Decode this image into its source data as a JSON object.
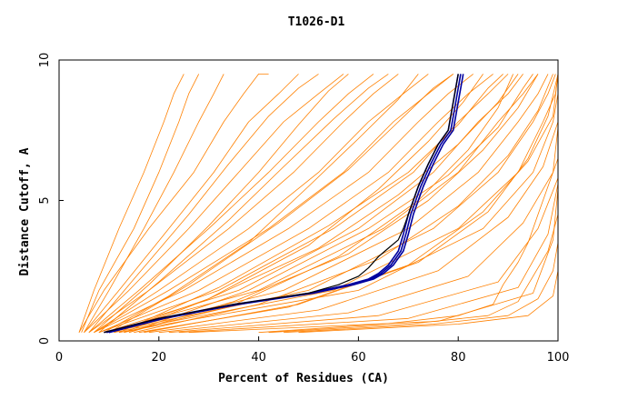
{
  "chart_data": {
    "type": "line",
    "title": "T1026-D1",
    "xlabel": "Percent of Residues (CA)",
    "ylabel": "Distance Cutoff, A",
    "xlim": [
      0,
      100
    ],
    "ylim": [
      0,
      10
    ],
    "xticks": [
      "0",
      "20",
      "40",
      "60",
      "80",
      "100"
    ],
    "yticks": [
      "0",
      "5",
      "10"
    ],
    "grid": false,
    "legend": "none",
    "colors": {
      "background_models": "#ff8000",
      "highlighted_models": "#0000a0",
      "reference_model": "#000000"
    },
    "series": [
      {
        "role": "background-models",
        "values": [
          {
            "x": [
              4,
              9,
              18,
              27,
              33,
              37,
              40,
              42
            ],
            "y": [
              0.3,
              1.8,
              4,
              6,
              7.8,
              8.8,
              9.5,
              9.5
            ]
          },
          {
            "x": [
              5,
              12,
              22,
              31,
              38,
              44,
              48
            ],
            "y": [
              0.3,
              1.8,
              4,
              6,
              7.8,
              8.8,
              9.5
            ]
          },
          {
            "x": [
              5,
              14,
              26,
              36,
              45,
              52,
              57
            ],
            "y": [
              0.3,
              1.8,
              4,
              6,
              7.8,
              8.8,
              9.5
            ]
          },
          {
            "x": [
              6,
              16,
              30,
              42,
              52,
              58,
              63
            ],
            "y": [
              0.3,
              1.8,
              4,
              6,
              7.8,
              8.8,
              9.5
            ]
          },
          {
            "x": [
              6,
              18,
              34,
              47,
              57,
              63,
              68
            ],
            "y": [
              0.3,
              1.8,
              4,
              6,
              7.8,
              8.8,
              9.5
            ]
          },
          {
            "x": [
              7,
              20,
              38,
              52,
              62,
              69,
              74
            ],
            "y": [
              0.3,
              1.8,
              4,
              6,
              7.8,
              8.8,
              9.5
            ]
          },
          {
            "x": [
              7,
              22,
              42,
              57,
              67,
              74,
              79
            ],
            "y": [
              0.3,
              1.8,
              4,
              6,
              7.8,
              8.8,
              9.5
            ]
          },
          {
            "x": [
              7,
              25,
              46,
              62,
              72,
              78,
              83
            ],
            "y": [
              0.3,
              1.8,
              4,
              6,
              7.8,
              8.8,
              9.5
            ]
          },
          {
            "x": [
              8,
              28,
              50,
              66,
              76,
              82,
              87
            ],
            "y": [
              0.3,
              1.8,
              4,
              6,
              7.8,
              8.8,
              9.5
            ]
          },
          {
            "x": [
              8,
              32,
              55,
              71,
              80,
              86,
              90
            ],
            "y": [
              0.3,
              1.8,
              4,
              6,
              7.8,
              8.8,
              9.5
            ]
          },
          {
            "x": [
              9,
              36,
              60,
              75,
              84,
              90,
              93
            ],
            "y": [
              0.3,
              1.8,
              4,
              6,
              7.8,
              8.8,
              9.5
            ]
          },
          {
            "x": [
              9,
              40,
              65,
              80,
              88,
              93,
              96
            ],
            "y": [
              0.3,
              1.8,
              4,
              6,
              7.8,
              8.8,
              9.5
            ]
          },
          {
            "x": [
              10,
              45,
              70,
              84,
              92,
              96,
              98
            ],
            "y": [
              0.3,
              1.8,
              4,
              6,
              7.8,
              8.8,
              9.5
            ]
          },
          {
            "x": [
              10,
              50,
              75,
              88,
              95,
              98,
              99.5
            ],
            "y": [
              0.3,
              1.8,
              4,
              6,
              7.8,
              8.8,
              9.5
            ]
          },
          {
            "x": [
              11,
              55,
              80,
              92,
              97,
              99.5,
              100
            ],
            "y": [
              0.3,
              1.8,
              4,
              6,
              7.8,
              8.8,
              9.5
            ]
          },
          {
            "x": [
              12,
              60,
              85,
              95,
              99,
              100,
              100
            ],
            "y": [
              0.3,
              1.8,
              4,
              6,
              7.8,
              8.8,
              9.5
            ]
          },
          {
            "x": [
              4,
              7,
              12,
              17,
              21,
              23,
              25
            ],
            "y": [
              0.3,
              1.8,
              4,
              6,
              7.8,
              8.8,
              9.5
            ]
          },
          {
            "x": [
              4.5,
              8,
              15,
              20,
              24,
              26,
              28
            ],
            "y": [
              0.3,
              1.8,
              4,
              6,
              7.8,
              8.8,
              9.5
            ]
          },
          {
            "x": [
              5,
              10,
              17,
              23,
              28,
              31,
              33
            ],
            "y": [
              0.3,
              1.8,
              4,
              6,
              7.8,
              8.8,
              9.5
            ]
          },
          {
            "x": [
              13,
              30,
              52,
              68,
              80,
              88,
              92
            ],
            "y": [
              0.3,
              1.5,
              3.3,
              5.2,
              7,
              8.5,
              9.5
            ]
          },
          {
            "x": [
              14,
              35,
              58,
              74,
              85,
              92,
              96
            ],
            "y": [
              0.3,
              1.4,
              3.1,
              5,
              6.8,
              8.3,
              9.5
            ]
          },
          {
            "x": [
              15,
              40,
              64,
              80,
              90,
              96,
              99
            ],
            "y": [
              0.3,
              1.3,
              2.9,
              4.8,
              6.6,
              8.2,
              9.5
            ]
          },
          {
            "x": [
              16,
              46,
              70,
              85,
              94,
              99,
              100
            ],
            "y": [
              0.3,
              1.2,
              2.7,
              4.6,
              6.4,
              8,
              9.5
            ]
          },
          {
            "x": [
              18,
              52,
              76,
              90,
              97,
              100,
              100
            ],
            "y": [
              0.3,
              1.1,
              2.5,
              4.4,
              6.2,
              7.8,
              9.5
            ]
          },
          {
            "x": [
              20,
              58,
              82,
              93,
              99,
              100,
              100
            ],
            "y": [
              0.3,
              1,
              2.3,
              4.2,
              6,
              7.6,
              9.5
            ]
          },
          {
            "x": [
              22,
              64,
              88,
              96,
              100,
              100,
              100
            ],
            "y": [
              0.3,
              0.9,
              2.1,
              4,
              5.8,
              7.4,
              9.5
            ]
          },
          {
            "x": [
              24,
              70,
              92,
              98,
              100,
              100,
              100
            ],
            "y": [
              0.3,
              0.8,
              1.9,
              3.8,
              5.6,
              7.2,
              9.5
            ]
          },
          {
            "x": [
              26,
              76,
              95,
              99,
              100,
              100,
              100
            ],
            "y": [
              0.3,
              0.7,
              1.7,
              3.6,
              5.4,
              7,
              9.5
            ]
          },
          {
            "x": [
              6,
              15,
              26,
              34,
              42,
              48,
              52
            ],
            "y": [
              0.3,
              2.2,
              4.5,
              6.3,
              8,
              9,
              9.5
            ]
          },
          {
            "x": [
              8,
              20,
              34,
              45,
              55,
              62,
              66
            ],
            "y": [
              0.3,
              2.1,
              4.3,
              6.2,
              7.9,
              9,
              9.5
            ]
          },
          {
            "x": [
              10,
              26,
              44,
              58,
              68,
              75,
              79
            ],
            "y": [
              0.3,
              2,
              4.2,
              6.1,
              7.8,
              9,
              9.5
            ]
          },
          {
            "x": [
              12,
              32,
              54,
              70,
              80,
              86,
              89
            ],
            "y": [
              0.3,
              1.9,
              4.1,
              6,
              7.7,
              9,
              9.5
            ]
          },
          {
            "x": [
              14,
              38,
              62,
              78,
              88,
              93,
              95
            ],
            "y": [
              0.3,
              1.8,
              4,
              5.9,
              7.6,
              9,
              9.5
            ]
          },
          {
            "x": [
              40,
              65,
              80,
              87,
              89,
              92,
              94,
              96,
              98,
              100
            ],
            "y": [
              0.3,
              0.6,
              0.9,
              1.3,
              2,
              2.8,
              3.5,
              4.5,
              5.5,
              6.5
            ]
          },
          {
            "x": [
              42,
              70,
              86,
              92,
              95,
              98,
              100
            ],
            "y": [
              0.3,
              0.6,
              0.9,
              1.4,
              2.3,
              3.2,
              4.5
            ]
          },
          {
            "x": [
              45,
              75,
              90,
              96,
              99,
              100
            ],
            "y": [
              0.3,
              0.6,
              0.9,
              1.5,
              2.5,
              3.5
            ]
          },
          {
            "x": [
              48,
              80,
              94,
              99,
              100
            ],
            "y": [
              0.3,
              0.6,
              0.9,
              1.6,
              2.5
            ]
          },
          {
            "x": [
              9,
              22,
              38,
              50,
              60,
              68,
              72
            ],
            "y": [
              0.3,
              1.6,
              3.5,
              5.5,
              7.2,
              8.6,
              9.5
            ]
          },
          {
            "x": [
              11,
              30,
              50,
              64,
              74,
              81,
              85
            ],
            "y": [
              0.3,
              1.5,
              3.4,
              5.4,
              7.1,
              8.5,
              9.5
            ]
          },
          {
            "x": [
              13,
              34,
              56,
              72,
              82,
              88,
              91
            ],
            "y": [
              0.3,
              1.2,
              3,
              5,
              6.8,
              8.3,
              9.5
            ]
          },
          {
            "x": [
              7,
              18,
              30,
              40,
              48,
              54,
              58
            ],
            "y": [
              0.3,
              2,
              4.1,
              6,
              7.7,
              8.9,
              9.5
            ]
          },
          {
            "x": [
              17,
              48,
              72,
              86,
              94,
              98,
              100
            ],
            "y": [
              0.3,
              1.3,
              2.8,
              4.6,
              6.5,
              8,
              9.5
            ]
          }
        ]
      },
      {
        "role": "highlighted-models",
        "values": [
          {
            "x": [
              9,
              20,
              35,
              50,
              58,
              62,
              64,
              66,
              68,
              69,
              70,
              72,
              74,
              76,
              78,
              79,
              80
            ],
            "y": [
              0.3,
              0.8,
              1.3,
              1.7,
              2,
              2.2,
              2.4,
              2.7,
              3.2,
              3.8,
              4.5,
              5.5,
              6.3,
              7,
              7.5,
              8.5,
              9.5
            ]
          },
          {
            "x": [
              10,
              21,
              36,
              51,
              59,
              63,
              65,
              67,
              69,
              70,
              71,
              73,
              75,
              77,
              79,
              80,
              81
            ],
            "y": [
              0.3,
              0.8,
              1.3,
              1.7,
              2,
              2.2,
              2.4,
              2.7,
              3.2,
              3.8,
              4.5,
              5.5,
              6.3,
              7,
              7.5,
              8.5,
              9.5
            ]
          },
          {
            "x": [
              9.5,
              20.5,
              35.5,
              50.5,
              58.5,
              62.5,
              64.5,
              66.5,
              68.5,
              69.5,
              70.5,
              72.5,
              74.5,
              76.5,
              78.5,
              79.5,
              80.5
            ],
            "y": [
              0.3,
              0.8,
              1.3,
              1.7,
              2,
              2.2,
              2.4,
              2.7,
              3.2,
              3.8,
              4.5,
              5.5,
              6.3,
              7,
              7.5,
              8.5,
              9.5
            ]
          }
        ]
      },
      {
        "role": "reference-model",
        "values": [
          {
            "x": [
              9,
              20,
              35,
              50,
              56,
              60,
              62,
              64,
              66,
              68,
              69,
              70,
              72,
              74,
              76,
              78,
              79,
              80
            ],
            "y": [
              0.3,
              0.8,
              1.3,
              1.7,
              2,
              2.3,
              2.6,
              3,
              3.3,
              3.6,
              4,
              4.5,
              5.5,
              6.3,
              7,
              7.5,
              8.5,
              9.5
            ]
          }
        ]
      }
    ]
  }
}
